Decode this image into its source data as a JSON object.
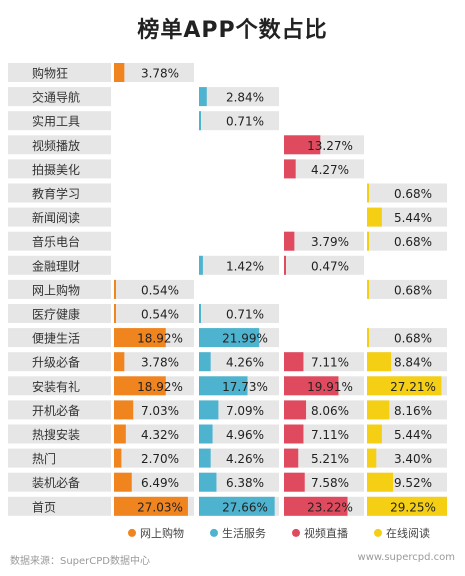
{
  "page": {
    "title": "榜单APP个数占比",
    "source": "数据来源：SuperCPD数据中心",
    "site": "www.supercpd.com"
  },
  "chart_data": {
    "type": "bar",
    "title": "榜单APP个数占比",
    "unit": "%",
    "categories": [
      "购物狂",
      "交通导航",
      "实用工具",
      "视频播放",
      "拍摄美化",
      "教育学习",
      "新闻阅读",
      "音乐电台",
      "金融理财",
      "网上购物",
      "医疗健康",
      "便捷生活",
      "升级必备",
      "安装有礼",
      "开机必备",
      "热搜安装",
      "热门",
      "装机必备",
      "首页"
    ],
    "series": [
      {
        "name": "网上购物",
        "color": "#f0841f",
        "values": [
          3.78,
          null,
          null,
          null,
          null,
          null,
          null,
          null,
          null,
          0.54,
          0.54,
          18.92,
          3.78,
          18.92,
          7.03,
          4.32,
          2.7,
          6.49,
          27.03
        ],
        "labels": [
          "3.78%",
          null,
          null,
          null,
          null,
          null,
          null,
          null,
          null,
          "0.54%",
          "0.54%",
          "18.92%",
          "3.78%",
          "18.92%",
          "7.03%",
          "4.32%",
          "2.70%",
          "6.49%",
          "27.03%"
        ]
      },
      {
        "name": "生活服务",
        "color": "#4eb3cf",
        "values": [
          null,
          2.84,
          0.71,
          null,
          null,
          null,
          null,
          null,
          1.42,
          null,
          0.71,
          21.99,
          4.26,
          17.73,
          7.09,
          4.96,
          4.26,
          6.38,
          27.66
        ],
        "labels": [
          null,
          "2.84%",
          "0.71%",
          null,
          null,
          null,
          null,
          null,
          "1.42%",
          null,
          "0.71%",
          "21.99%",
          "4.26%",
          "17.73%",
          "7.09%",
          "4.96%",
          "4.26%",
          "6.38%",
          "27.66%"
        ]
      },
      {
        "name": "视频直播",
        "color": "#e04a5f",
        "values": [
          null,
          null,
          null,
          13.27,
          4.27,
          null,
          null,
          3.79,
          0.47,
          null,
          null,
          null,
          7.11,
          19.91,
          8.06,
          7.11,
          5.21,
          7.58,
          23.22
        ],
        "labels": [
          null,
          null,
          null,
          "13.27%",
          "4.27%",
          null,
          null,
          "3.79%",
          "0.47%",
          null,
          null,
          null,
          "7.11%",
          "19.91%",
          "8.06%",
          "7.11%",
          "5.21%",
          "7.58%",
          "23.22%"
        ]
      },
      {
        "name": "在线阅读",
        "color": "#f5cf14",
        "values": [
          null,
          null,
          null,
          null,
          null,
          0.68,
          5.44,
          0.68,
          null,
          0.68,
          null,
          0.68,
          8.84,
          27.21,
          8.16,
          5.44,
          3.4,
          9.52,
          29.25
        ],
        "labels": [
          null,
          null,
          null,
          null,
          null,
          "0.68%",
          "5.44%",
          "0.68%",
          null,
          "0.68%",
          null,
          "0.68%",
          "8.84%",
          "27.21%",
          "8.16%",
          "5.44%",
          "3.40%",
          "9.52%",
          "29.25%"
        ]
      }
    ],
    "xlim": [
      0,
      29.25
    ],
    "legend_position": "bottom",
    "grid": false
  }
}
